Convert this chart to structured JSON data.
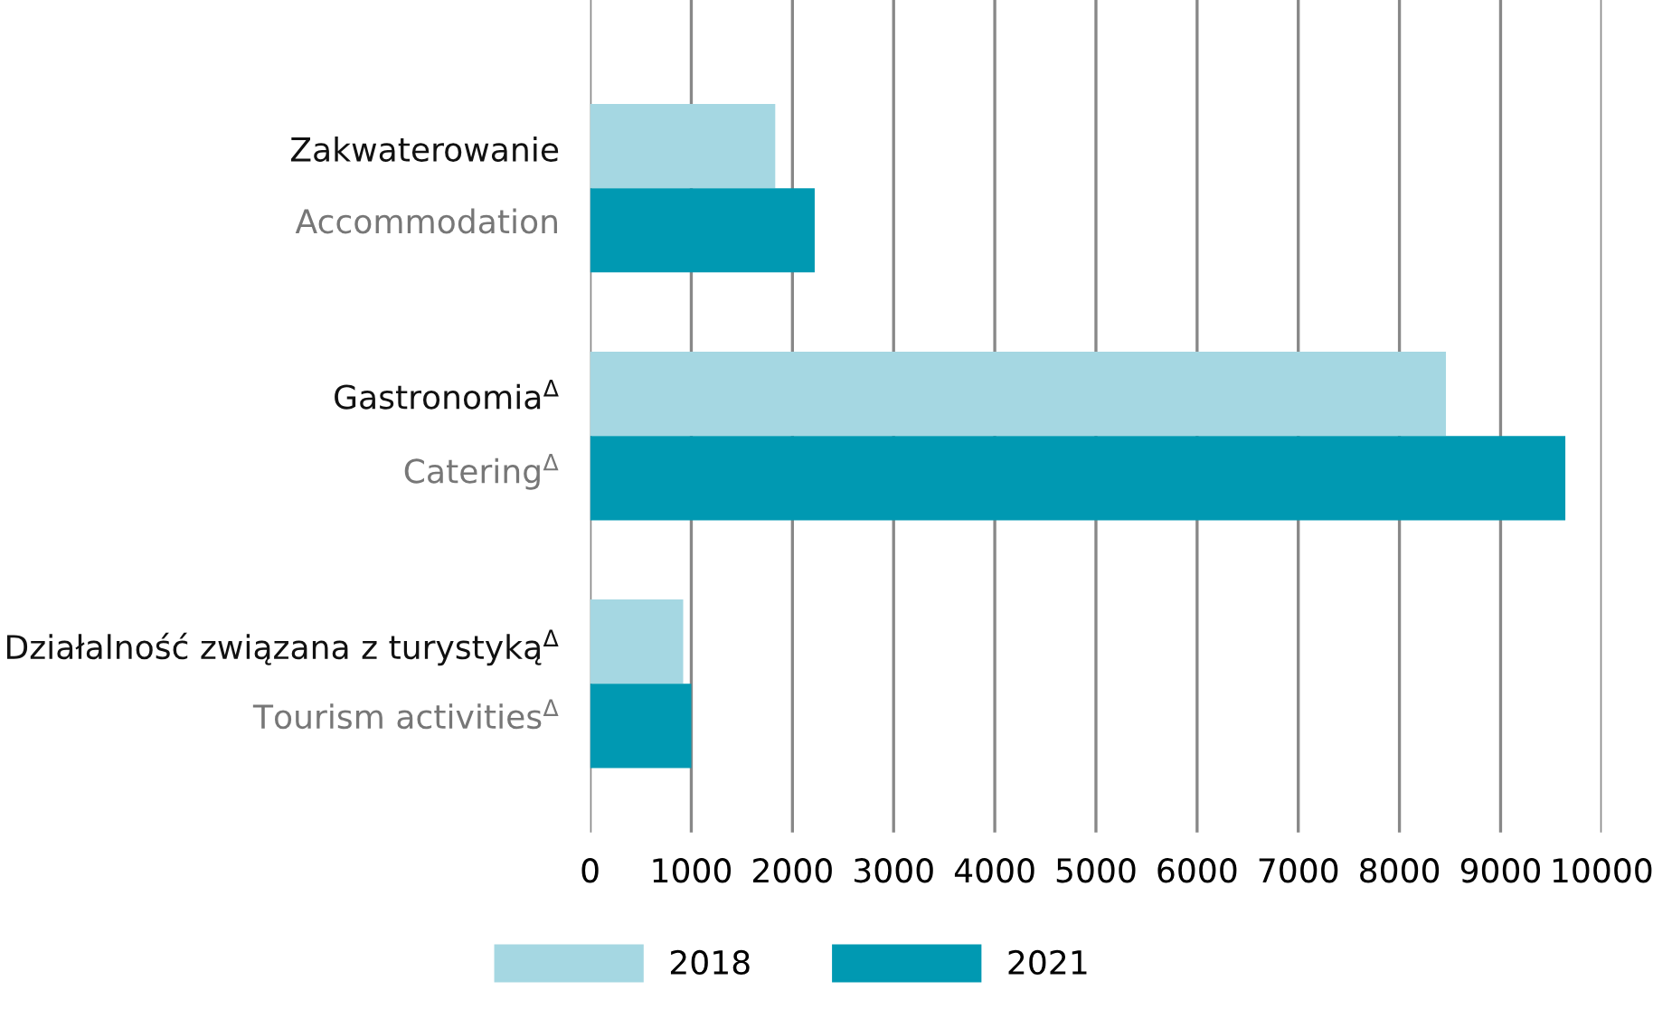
{
  "chart_data": {
    "type": "bar",
    "orientation": "horizontal",
    "categories": [
      "Zakwaterowanie\nAccommodation",
      "Gastronomia$^{Δ}$\nCatering$^{Δ}$",
      "Działalność związana z turystyką$^{Δ}$\nTourism activities$^{Δ}$"
    ],
    "series": [
      {
        "name": "2018",
        "color": "#a5d7e2",
        "values": [
          1830,
          8460,
          920
        ]
      },
      {
        "name": "2021",
        "color": "#0099b2",
        "values": [
          2220,
          9640,
          1000
        ]
      }
    ],
    "xlim": [
      0,
      10000
    ],
    "xticks": [
      0,
      1000,
      2000,
      3000,
      4000,
      5000,
      6000,
      7000,
      8000,
      9000,
      10000
    ],
    "grid": "x",
    "legend": "bottom"
  }
}
